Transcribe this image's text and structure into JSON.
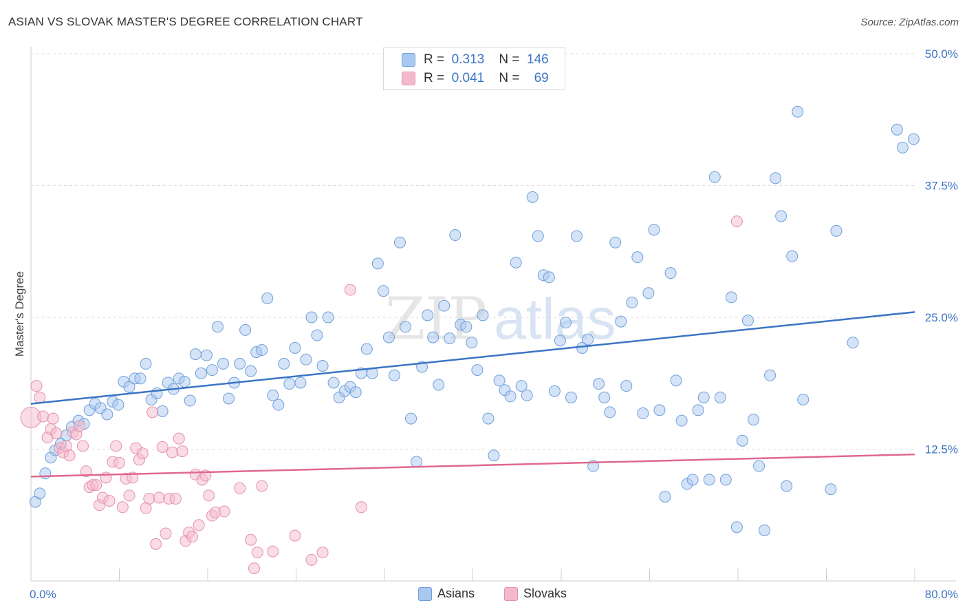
{
  "title": "ASIAN VS SLOVAK MASTER'S DEGREE CORRELATION CHART",
  "source": "Source: ZipAtlas.com",
  "watermark": {
    "zip": "ZIP",
    "atlas": "atlas"
  },
  "legend": {
    "rows": [
      {
        "r_label": "R =",
        "r_value": "0.313",
        "n_label": "N =",
        "n_value": "146",
        "color": "#a9c8f0"
      },
      {
        "r_label": "R =",
        "r_value": "0.041",
        "n_label": "N =",
        "n_value": "69",
        "color": "#f5b9cc"
      }
    ]
  },
  "chart_data": {
    "type": "scatter",
    "ylabel": "Master's Degree",
    "xlim": [
      0,
      80
    ],
    "ylim": [
      0,
      50
    ],
    "x_tick_labels": [
      "0.0%",
      "80.0%"
    ],
    "y_ticks": [
      12.5,
      25.0,
      37.5,
      50.0
    ],
    "y_tick_labels": [
      "12.5%",
      "25.0%",
      "37.5%",
      "50.0%"
    ],
    "grid": true,
    "legend_position": "top-center",
    "series": [
      {
        "name": "Asians",
        "color": "#a9c8f0",
        "stroke": "#6f9fd8",
        "trend": {
          "x": [
            0,
            80
          ],
          "y": [
            16.8,
            25.5
          ],
          "color": "#3a74c4"
        },
        "points": [
          [
            0.4,
            7.5
          ],
          [
            0.8,
            8.3
          ],
          [
            1.3,
            10.2
          ],
          [
            1.8,
            11.7
          ],
          [
            2.2,
            12.4
          ],
          [
            2.7,
            13.0
          ],
          [
            3.2,
            13.8
          ],
          [
            3.7,
            14.6
          ],
          [
            4.3,
            15.2
          ],
          [
            4.8,
            14.9
          ],
          [
            5.3,
            16.2
          ],
          [
            5.8,
            16.8
          ],
          [
            6.3,
            16.4
          ],
          [
            6.9,
            15.8
          ],
          [
            7.4,
            17.0
          ],
          [
            7.9,
            16.7
          ],
          [
            8.4,
            18.9
          ],
          [
            8.9,
            18.4
          ],
          [
            9.4,
            19.2
          ],
          [
            9.9,
            19.2
          ],
          [
            10.4,
            20.6
          ],
          [
            10.9,
            17.2
          ],
          [
            11.4,
            17.8
          ],
          [
            11.9,
            16.1
          ],
          [
            12.4,
            18.8
          ],
          [
            12.9,
            18.2
          ],
          [
            13.4,
            19.2
          ],
          [
            13.9,
            18.9
          ],
          [
            14.4,
            17.1
          ],
          [
            14.9,
            21.5
          ],
          [
            15.4,
            19.7
          ],
          [
            15.9,
            21.4
          ],
          [
            16.4,
            20.0
          ],
          [
            16.9,
            24.1
          ],
          [
            17.4,
            20.6
          ],
          [
            17.9,
            17.3
          ],
          [
            18.4,
            18.8
          ],
          [
            18.9,
            20.6
          ],
          [
            19.4,
            23.8
          ],
          [
            19.9,
            19.9
          ],
          [
            20.4,
            21.7
          ],
          [
            20.9,
            21.9
          ],
          [
            21.4,
            26.8
          ],
          [
            21.9,
            17.6
          ],
          [
            22.4,
            16.7
          ],
          [
            22.9,
            20.6
          ],
          [
            23.4,
            18.7
          ],
          [
            23.9,
            22.1
          ],
          [
            24.4,
            18.8
          ],
          [
            24.9,
            21.0
          ],
          [
            25.4,
            25.0
          ],
          [
            25.9,
            23.3
          ],
          [
            26.4,
            20.4
          ],
          [
            26.9,
            25.0
          ],
          [
            27.4,
            18.8
          ],
          [
            27.9,
            17.4
          ],
          [
            28.4,
            18.0
          ],
          [
            28.9,
            18.4
          ],
          [
            29.4,
            17.9
          ],
          [
            29.9,
            19.7
          ],
          [
            30.4,
            22.0
          ],
          [
            30.9,
            19.7
          ],
          [
            31.4,
            30.1
          ],
          [
            31.9,
            27.5
          ],
          [
            32.4,
            23.1
          ],
          [
            32.9,
            19.5
          ],
          [
            33.4,
            32.1
          ],
          [
            33.9,
            24.1
          ],
          [
            34.4,
            15.4
          ],
          [
            34.9,
            11.3
          ],
          [
            35.4,
            20.3
          ],
          [
            35.9,
            25.2
          ],
          [
            36.4,
            23.1
          ],
          [
            36.9,
            18.6
          ],
          [
            37.4,
            26.1
          ],
          [
            37.9,
            23.0
          ],
          [
            38.4,
            32.8
          ],
          [
            38.9,
            24.3
          ],
          [
            39.4,
            24.1
          ],
          [
            39.9,
            22.6
          ],
          [
            40.4,
            20.0
          ],
          [
            40.9,
            25.2
          ],
          [
            41.4,
            15.4
          ],
          [
            41.9,
            11.9
          ],
          [
            42.4,
            19.0
          ],
          [
            42.9,
            18.1
          ],
          [
            43.4,
            17.5
          ],
          [
            43.9,
            30.2
          ],
          [
            44.4,
            18.5
          ],
          [
            44.9,
            17.6
          ],
          [
            45.4,
            36.4
          ],
          [
            45.9,
            32.7
          ],
          [
            46.4,
            29.0
          ],
          [
            46.9,
            28.8
          ],
          [
            47.4,
            18.0
          ],
          [
            47.9,
            22.8
          ],
          [
            48.4,
            24.5
          ],
          [
            48.9,
            17.4
          ],
          [
            49.4,
            32.7
          ],
          [
            49.9,
            22.1
          ],
          [
            50.4,
            22.9
          ],
          [
            50.9,
            10.9
          ],
          [
            51.4,
            18.7
          ],
          [
            51.9,
            17.4
          ],
          [
            52.4,
            16.0
          ],
          [
            52.9,
            32.1
          ],
          [
            53.4,
            24.6
          ],
          [
            53.9,
            18.5
          ],
          [
            54.4,
            26.4
          ],
          [
            54.9,
            30.7
          ],
          [
            55.4,
            15.9
          ],
          [
            55.9,
            27.3
          ],
          [
            56.4,
            33.3
          ],
          [
            56.9,
            16.2
          ],
          [
            57.4,
            8.0
          ],
          [
            57.9,
            29.2
          ],
          [
            58.4,
            19.0
          ],
          [
            58.9,
            15.2
          ],
          [
            59.4,
            9.2
          ],
          [
            59.9,
            9.6
          ],
          [
            60.4,
            16.2
          ],
          [
            60.9,
            17.4
          ],
          [
            61.4,
            9.6
          ],
          [
            61.9,
            38.3
          ],
          [
            62.4,
            17.4
          ],
          [
            62.9,
            9.6
          ],
          [
            63.4,
            26.9
          ],
          [
            63.9,
            5.1
          ],
          [
            64.4,
            13.3
          ],
          [
            64.9,
            24.7
          ],
          [
            65.4,
            15.3
          ],
          [
            65.9,
            10.9
          ],
          [
            66.4,
            4.8
          ],
          [
            66.9,
            19.5
          ],
          [
            67.4,
            38.2
          ],
          [
            67.9,
            34.6
          ],
          [
            68.4,
            9.0
          ],
          [
            68.9,
            30.8
          ],
          [
            69.4,
            44.5
          ],
          [
            69.9,
            17.2
          ],
          [
            72.4,
            8.7
          ],
          [
            72.9,
            33.2
          ],
          [
            74.4,
            22.6
          ],
          [
            78.4,
            42.8
          ],
          [
            78.9,
            41.1
          ],
          [
            79.9,
            41.9
          ]
        ]
      },
      {
        "name": "Slovaks",
        "color": "#f5b9cc",
        "stroke": "#e591ad",
        "trend": {
          "x": [
            0,
            80
          ],
          "y": [
            9.9,
            12.0
          ],
          "color": "#e0678f"
        },
        "points": [
          [
            0.0,
            15.5
          ],
          [
            0.5,
            18.5
          ],
          [
            0.8,
            17.4
          ],
          [
            1.1,
            15.6
          ],
          [
            1.5,
            13.6
          ],
          [
            1.8,
            14.4
          ],
          [
            2.0,
            15.4
          ],
          [
            2.3,
            14.0
          ],
          [
            2.6,
            12.6
          ],
          [
            2.9,
            12.2
          ],
          [
            3.2,
            12.8
          ],
          [
            3.5,
            11.9
          ],
          [
            3.8,
            14.1
          ],
          [
            4.1,
            13.9
          ],
          [
            4.4,
            14.7
          ],
          [
            4.7,
            12.8
          ],
          [
            5.0,
            10.4
          ],
          [
            5.3,
            8.9
          ],
          [
            5.6,
            9.1
          ],
          [
            5.9,
            9.1
          ],
          [
            6.2,
            7.2
          ],
          [
            6.5,
            7.9
          ],
          [
            6.8,
            9.8
          ],
          [
            7.1,
            7.6
          ],
          [
            7.4,
            11.3
          ],
          [
            7.7,
            12.8
          ],
          [
            8.0,
            11.2
          ],
          [
            8.3,
            7.0
          ],
          [
            8.6,
            9.7
          ],
          [
            8.9,
            8.1
          ],
          [
            9.2,
            9.8
          ],
          [
            9.5,
            12.6
          ],
          [
            9.8,
            11.5
          ],
          [
            10.1,
            12.1
          ],
          [
            10.4,
            6.9
          ],
          [
            10.7,
            7.8
          ],
          [
            11.0,
            16.0
          ],
          [
            11.3,
            3.5
          ],
          [
            11.6,
            7.9
          ],
          [
            11.9,
            12.7
          ],
          [
            12.2,
            4.5
          ],
          [
            12.5,
            7.8
          ],
          [
            12.8,
            12.2
          ],
          [
            13.1,
            7.8
          ],
          [
            13.4,
            13.5
          ],
          [
            13.7,
            12.3
          ],
          [
            14.0,
            3.8
          ],
          [
            14.3,
            4.6
          ],
          [
            14.6,
            4.2
          ],
          [
            14.9,
            10.1
          ],
          [
            15.2,
            5.3
          ],
          [
            15.5,
            9.6
          ],
          [
            15.8,
            10.0
          ],
          [
            16.1,
            8.1
          ],
          [
            16.4,
            6.2
          ],
          [
            16.7,
            6.5
          ],
          [
            17.5,
            6.6
          ],
          [
            18.9,
            8.8
          ],
          [
            19.9,
            3.9
          ],
          [
            20.2,
            1.2
          ],
          [
            20.5,
            2.7
          ],
          [
            20.9,
            9.0
          ],
          [
            21.9,
            2.8
          ],
          [
            23.9,
            4.3
          ],
          [
            25.4,
            2.0
          ],
          [
            26.4,
            2.7
          ],
          [
            28.9,
            27.6
          ],
          [
            29.9,
            7.0
          ],
          [
            63.9,
            34.1
          ]
        ]
      }
    ]
  }
}
